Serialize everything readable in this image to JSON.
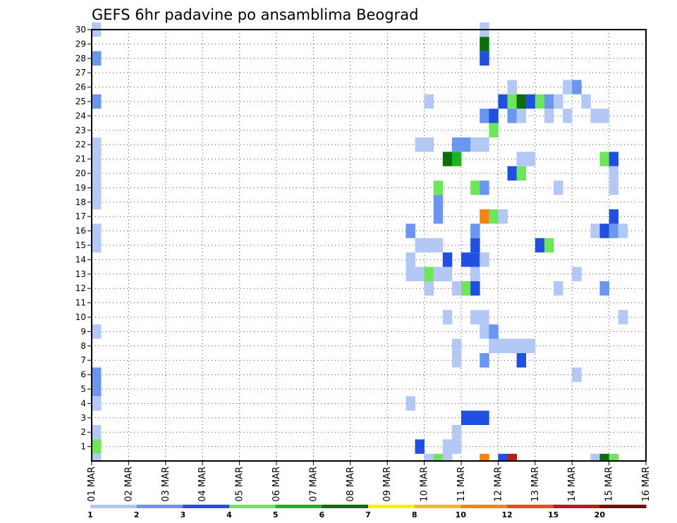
{
  "chart_data": {
    "type": "heatmap",
    "title": "GEFS 6hr padavine po ansamblima Beograd",
    "xlabel": "",
    "ylabel": "",
    "grid": true,
    "y_ticks": [
      "1",
      "2",
      "3",
      "4",
      "5",
      "6",
      "7",
      "8",
      "9",
      "10",
      "11",
      "12",
      "13",
      "14",
      "15",
      "16",
      "17",
      "18",
      "19",
      "20",
      "21",
      "22",
      "23",
      "24",
      "25",
      "26",
      "27",
      "28",
      "29",
      "30"
    ],
    "x_ticks": [
      "01 MAR",
      "02 MAR",
      "03 MAR",
      "04 MAR",
      "05 MAR",
      "06 MAR",
      "07 MAR",
      "08 MAR",
      "09 MAR",
      "10 MAR",
      "11 MAR",
      "12 MAR",
      "13 MAR",
      "14 MAR",
      "15 MAR",
      "16 MAR"
    ],
    "xlim": [
      0,
      60
    ],
    "ylim": [
      0,
      30
    ],
    "time_step_hours": 6,
    "color_levels": [
      "1",
      "2",
      "3",
      "4",
      "5",
      "6",
      "7",
      "8",
      "10",
      "12",
      "15",
      "20"
    ],
    "color_bins": [
      "#b4c8f5",
      "#6a96f0",
      "#2050e0",
      "#6ee65a",
      "#1eb41e",
      "#0a6e0a",
      "#f5f500",
      "#f5b432",
      "#f58214",
      "#e65014",
      "#b41e14",
      "#780a0a"
    ],
    "cells": [
      [
        0,
        30,
        1
      ],
      [
        0,
        28,
        2
      ],
      [
        0,
        25,
        2
      ],
      [
        0,
        22,
        1
      ],
      [
        0,
        21,
        1
      ],
      [
        0,
        20,
        1
      ],
      [
        0,
        19,
        1
      ],
      [
        0,
        18,
        1
      ],
      [
        0,
        16,
        1
      ],
      [
        0,
        15,
        1
      ],
      [
        0,
        9,
        1
      ],
      [
        0,
        6,
        2
      ],
      [
        0,
        5,
        2
      ],
      [
        0,
        4,
        1
      ],
      [
        0,
        2,
        1
      ],
      [
        0,
        1,
        4
      ],
      [
        0,
        0,
        1
      ],
      [
        34,
        4,
        1
      ],
      [
        34,
        13,
        1
      ],
      [
        34,
        16,
        2
      ],
      [
        34,
        14,
        1
      ],
      [
        35,
        1,
        3
      ],
      [
        35,
        13,
        1
      ],
      [
        35,
        15,
        1
      ],
      [
        35,
        22,
        1
      ],
      [
        36,
        0,
        1
      ],
      [
        36,
        12,
        1
      ],
      [
        36,
        13,
        4
      ],
      [
        36,
        15,
        1
      ],
      [
        36,
        22,
        1
      ],
      [
        36,
        25,
        1
      ],
      [
        37,
        0,
        4
      ],
      [
        37,
        13,
        1
      ],
      [
        37,
        15,
        1
      ],
      [
        37,
        17,
        2
      ],
      [
        37,
        18,
        2
      ],
      [
        37,
        19,
        4
      ],
      [
        38,
        0,
        1
      ],
      [
        38,
        1,
        1
      ],
      [
        38,
        10,
        1
      ],
      [
        38,
        13,
        1
      ],
      [
        38,
        14,
        3
      ],
      [
        38,
        21,
        6
      ],
      [
        39,
        1,
        1
      ],
      [
        39,
        2,
        1
      ],
      [
        39,
        7,
        1
      ],
      [
        39,
        8,
        1
      ],
      [
        39,
        12,
        1
      ],
      [
        39,
        21,
        5
      ],
      [
        39,
        22,
        2
      ],
      [
        40,
        3,
        3
      ],
      [
        40,
        12,
        4
      ],
      [
        40,
        14,
        3
      ],
      [
        40,
        22,
        2
      ],
      [
        41,
        3,
        3
      ],
      [
        41,
        10,
        1
      ],
      [
        41,
        12,
        3
      ],
      [
        41,
        13,
        1
      ],
      [
        41,
        14,
        3
      ],
      [
        41,
        15,
        3
      ],
      [
        41,
        16,
        2
      ],
      [
        41,
        19,
        4
      ],
      [
        41,
        22,
        1
      ],
      [
        42,
        0,
        9
      ],
      [
        42,
        3,
        3
      ],
      [
        42,
        7,
        2
      ],
      [
        42,
        9,
        1
      ],
      [
        42,
        10,
        1
      ],
      [
        42,
        14,
        1
      ],
      [
        42,
        17,
        9
      ],
      [
        42,
        19,
        2
      ],
      [
        42,
        22,
        1
      ],
      [
        42,
        24,
        2
      ],
      [
        42,
        28,
        3
      ],
      [
        42,
        29,
        6
      ],
      [
        42,
        30,
        1
      ],
      [
        43,
        8,
        1
      ],
      [
        43,
        9,
        2
      ],
      [
        43,
        17,
        4
      ],
      [
        43,
        23,
        4
      ],
      [
        43,
        24,
        3
      ],
      [
        44,
        0,
        3
      ],
      [
        44,
        8,
        1
      ],
      [
        44,
        17,
        1
      ],
      [
        44,
        25,
        3
      ],
      [
        45,
        0,
        11
      ],
      [
        45,
        8,
        1
      ],
      [
        45,
        20,
        3
      ],
      [
        45,
        24,
        2
      ],
      [
        45,
        25,
        4
      ],
      [
        45,
        26,
        1
      ],
      [
        46,
        7,
        3
      ],
      [
        46,
        8,
        1
      ],
      [
        46,
        20,
        4
      ],
      [
        46,
        21,
        1
      ],
      [
        46,
        24,
        1
      ],
      [
        46,
        25,
        6
      ],
      [
        47,
        8,
        1
      ],
      [
        47,
        21,
        1
      ],
      [
        47,
        25,
        3
      ],
      [
        48,
        15,
        3
      ],
      [
        48,
        25,
        4
      ],
      [
        49,
        15,
        4
      ],
      [
        49,
        25,
        2
      ],
      [
        49,
        24,
        1
      ],
      [
        50,
        12,
        1
      ],
      [
        50,
        19,
        1
      ],
      [
        50,
        25,
        1
      ],
      [
        51,
        24,
        1
      ],
      [
        51,
        26,
        1
      ],
      [
        52,
        6,
        1
      ],
      [
        52,
        13,
        1
      ],
      [
        52,
        26,
        2
      ],
      [
        53,
        25,
        1
      ],
      [
        54,
        0,
        1
      ],
      [
        54,
        16,
        1
      ],
      [
        54,
        24,
        1
      ],
      [
        55,
        0,
        6
      ],
      [
        55,
        12,
        2
      ],
      [
        55,
        16,
        3
      ],
      [
        55,
        21,
        4
      ],
      [
        55,
        24,
        1
      ],
      [
        56,
        0,
        4
      ],
      [
        56,
        16,
        2
      ],
      [
        56,
        17,
        3
      ],
      [
        56,
        19,
        1
      ],
      [
        56,
        20,
        1
      ],
      [
        56,
        21,
        3
      ],
      [
        57,
        16,
        1
      ],
      [
        57,
        10,
        1
      ]
    ]
  }
}
